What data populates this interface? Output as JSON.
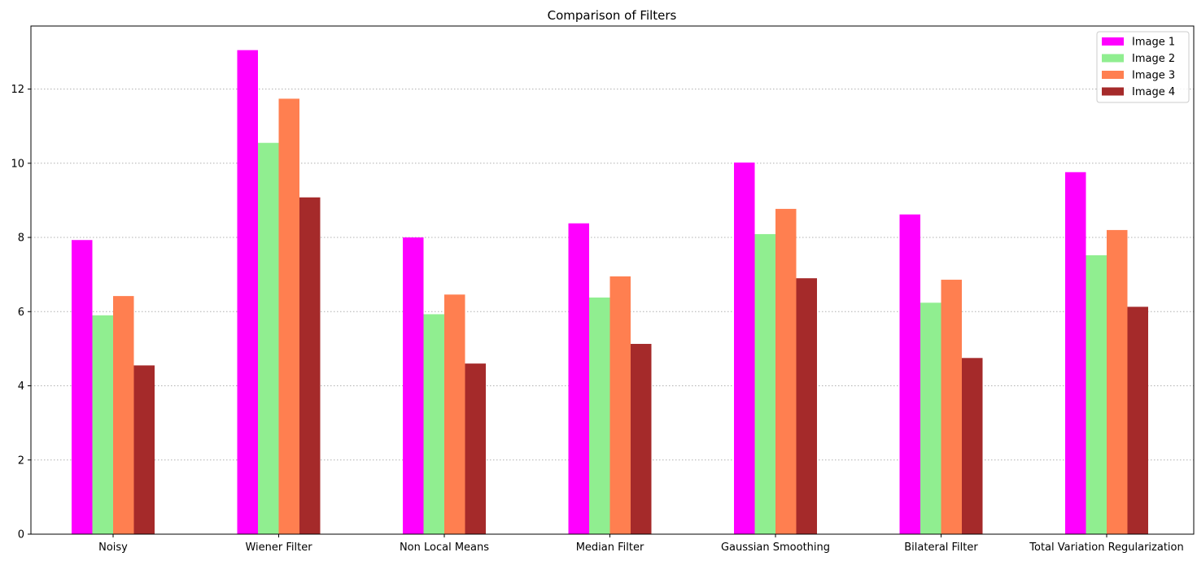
{
  "chart_data": {
    "type": "bar",
    "title": "Comparison of Filters",
    "xlabel": "",
    "ylabel": "",
    "categories": [
      "Noisy",
      "Wiener Filter",
      "Non Local Means",
      "Median Filter",
      "Gaussian Smoothing",
      "Bilateral Filter",
      "Total Variation Regularization"
    ],
    "series": [
      {
        "name": "Image 1",
        "color": "#ff00ff",
        "values": [
          7.93,
          13.05,
          8.0,
          8.38,
          10.02,
          8.62,
          9.76
        ]
      },
      {
        "name": "Image 2",
        "color": "#90ee90",
        "values": [
          5.9,
          10.55,
          5.93,
          6.38,
          8.09,
          6.24,
          7.52
        ]
      },
      {
        "name": "Image 3",
        "color": "#ff7f50",
        "values": [
          6.42,
          11.74,
          6.46,
          6.95,
          8.77,
          6.86,
          8.2
        ]
      },
      {
        "name": "Image 4",
        "color": "#a52a2a",
        "values": [
          4.55,
          9.08,
          4.6,
          5.13,
          6.9,
          4.75,
          6.13
        ]
      }
    ],
    "ylim": [
      0,
      13.7
    ],
    "yticks": [
      0,
      2,
      4,
      6,
      8,
      10,
      12
    ],
    "grid": "y-dotted",
    "legend": "top-right"
  }
}
